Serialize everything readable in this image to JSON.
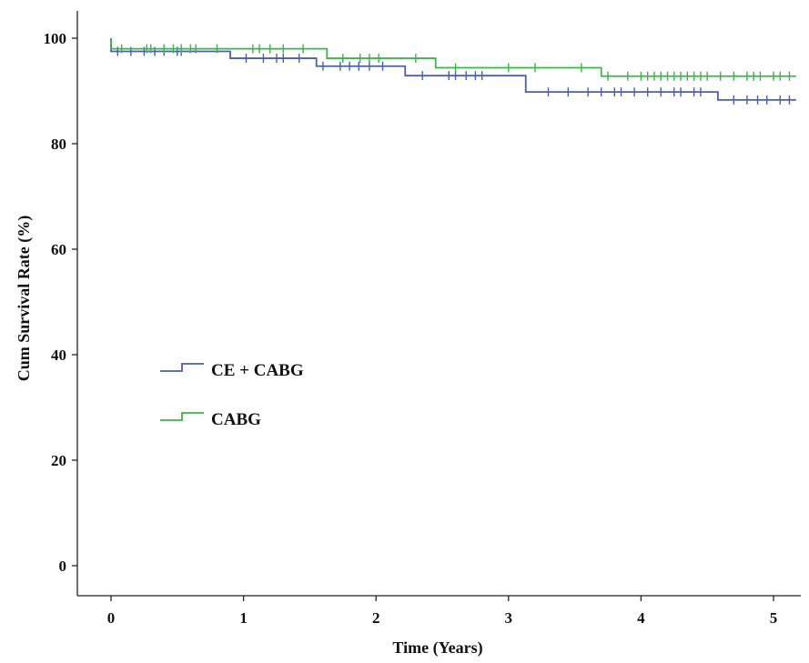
{
  "chart_data": {
    "type": "line",
    "subtype": "kaplan-meier",
    "xlabel": "Time (Years)",
    "ylabel": "Cum Survival Rate (%)",
    "xlim": [
      -0.25,
      5.2
    ],
    "ylim": [
      -5,
      104
    ],
    "xticks": [
      0,
      1,
      2,
      3,
      4,
      5
    ],
    "yticks": [
      0,
      20,
      40,
      60,
      80,
      100
    ],
    "xtick_labels": [
      "0",
      "1",
      "2",
      "3",
      "4",
      "5"
    ],
    "ytick_labels": [
      "0",
      "20",
      "40",
      "60",
      "80",
      "100"
    ],
    "grid": false,
    "legend_position": "left-middle",
    "series": [
      {
        "name": "CE + CABG",
        "color": "#4a5fb0",
        "steps": [
          [
            0,
            97.5
          ],
          [
            0.9,
            96.2
          ],
          [
            1.55,
            94.7
          ],
          [
            2.22,
            92.9
          ],
          [
            3.13,
            89.8
          ],
          [
            4.58,
            88.3
          ],
          [
            5.17,
            88.3
          ]
        ],
        "censored": [
          [
            0.05,
            97.5
          ],
          [
            0.15,
            97.5
          ],
          [
            0.25,
            97.5
          ],
          [
            0.33,
            97.5
          ],
          [
            0.4,
            97.5
          ],
          [
            0.5,
            97.5
          ],
          [
            0.53,
            97.5
          ],
          [
            1.02,
            96.2
          ],
          [
            1.15,
            96.2
          ],
          [
            1.25,
            96.2
          ],
          [
            1.3,
            96.2
          ],
          [
            1.42,
            96.2
          ],
          [
            1.6,
            94.7
          ],
          [
            1.73,
            94.7
          ],
          [
            1.8,
            94.7
          ],
          [
            1.87,
            94.7
          ],
          [
            1.95,
            94.7
          ],
          [
            2.05,
            94.7
          ],
          [
            2.35,
            92.9
          ],
          [
            2.55,
            92.9
          ],
          [
            2.6,
            92.9
          ],
          [
            2.68,
            92.9
          ],
          [
            2.75,
            92.9
          ],
          [
            2.8,
            92.9
          ],
          [
            3.3,
            89.8
          ],
          [
            3.45,
            89.8
          ],
          [
            3.6,
            89.8
          ],
          [
            3.7,
            89.8
          ],
          [
            3.8,
            89.8
          ],
          [
            3.85,
            89.8
          ],
          [
            3.95,
            89.8
          ],
          [
            4.05,
            89.8
          ],
          [
            4.15,
            89.8
          ],
          [
            4.25,
            89.8
          ],
          [
            4.3,
            89.8
          ],
          [
            4.4,
            89.8
          ],
          [
            4.45,
            89.8
          ],
          [
            4.7,
            88.3
          ],
          [
            4.8,
            88.3
          ],
          [
            4.88,
            88.3
          ],
          [
            4.95,
            88.3
          ],
          [
            5.05,
            88.3
          ],
          [
            5.12,
            88.3
          ]
        ]
      },
      {
        "name": "CABG",
        "color": "#3cb54a",
        "steps": [
          [
            0,
            98
          ],
          [
            1.63,
            96.2
          ],
          [
            2.45,
            94.4
          ],
          [
            3.7,
            92.8
          ],
          [
            5.17,
            92.8
          ]
        ],
        "censored": [
          [
            0.08,
            98
          ],
          [
            0.27,
            98
          ],
          [
            0.3,
            98
          ],
          [
            0.4,
            98
          ],
          [
            0.47,
            98
          ],
          [
            0.53,
            98
          ],
          [
            0.6,
            98
          ],
          [
            0.64,
            98
          ],
          [
            0.8,
            98
          ],
          [
            1.07,
            98
          ],
          [
            1.12,
            98
          ],
          [
            1.2,
            98
          ],
          [
            1.3,
            98
          ],
          [
            1.45,
            98
          ],
          [
            1.75,
            96.2
          ],
          [
            1.88,
            96.2
          ],
          [
            1.95,
            96.2
          ],
          [
            2.02,
            96.2
          ],
          [
            2.3,
            96.2
          ],
          [
            2.6,
            94.4
          ],
          [
            3.0,
            94.4
          ],
          [
            3.2,
            94.4
          ],
          [
            3.55,
            94.4
          ],
          [
            3.75,
            92.8
          ],
          [
            3.9,
            92.8
          ],
          [
            4.0,
            92.8
          ],
          [
            4.05,
            92.8
          ],
          [
            4.1,
            92.8
          ],
          [
            4.15,
            92.8
          ],
          [
            4.2,
            92.8
          ],
          [
            4.25,
            92.8
          ],
          [
            4.3,
            92.8
          ],
          [
            4.35,
            92.8
          ],
          [
            4.4,
            92.8
          ],
          [
            4.45,
            92.8
          ],
          [
            4.5,
            92.8
          ],
          [
            4.6,
            92.8
          ],
          [
            4.7,
            92.8
          ],
          [
            4.8,
            92.8
          ],
          [
            4.85,
            92.8
          ],
          [
            4.9,
            92.8
          ],
          [
            5.0,
            92.8
          ],
          [
            5.05,
            92.8
          ],
          [
            5.12,
            92.8
          ]
        ]
      }
    ]
  }
}
